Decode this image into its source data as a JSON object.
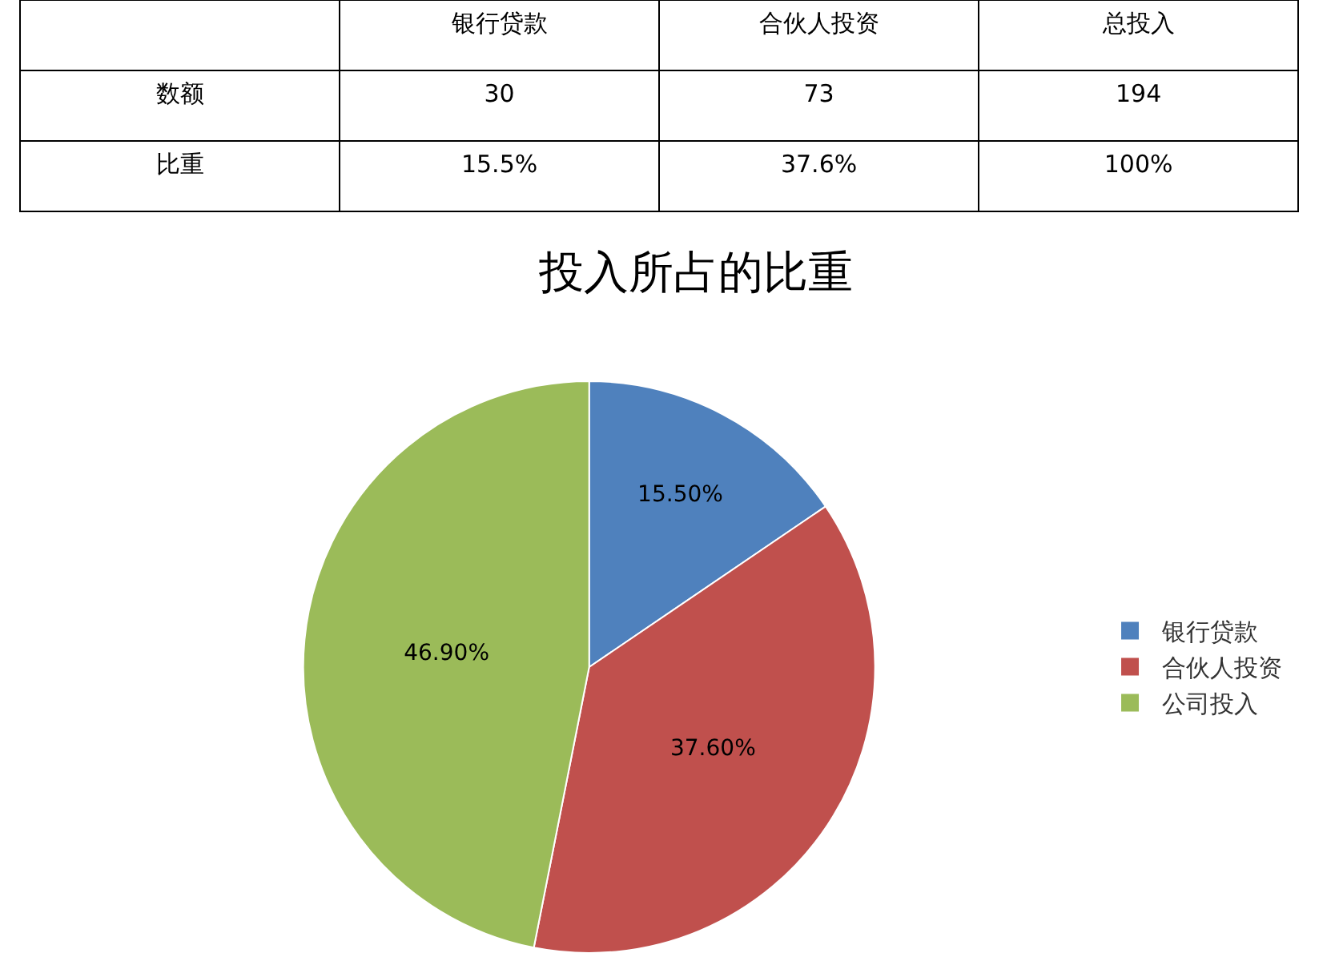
{
  "chart_data": [
    {
      "type": "other",
      "categories": [
        "银行贷款",
        "合伙人投资",
        "总投入"
      ],
      "series": [
        {
          "name": "数额",
          "values": [
            30,
            73,
            194
          ],
          "value_labels": [
            "30",
            "73",
            "194"
          ]
        },
        {
          "name": "比重",
          "values": [
            15.5,
            37.6,
            100
          ],
          "value_labels": [
            "15.5%",
            "37.6%",
            "100%"
          ]
        }
      ]
    },
    {
      "type": "pie",
      "title": "投入所占的比重",
      "categories": [
        "银行贷款",
        "合伙人投资",
        "公司投入"
      ],
      "values": [
        15.5,
        37.6,
        46.9
      ],
      "value_labels": [
        "15.50%",
        "37.60%",
        "46.90%"
      ],
      "colors": [
        "#4f81bd",
        "#c0504d",
        "#9bbb59"
      ],
      "legend": "right"
    }
  ]
}
